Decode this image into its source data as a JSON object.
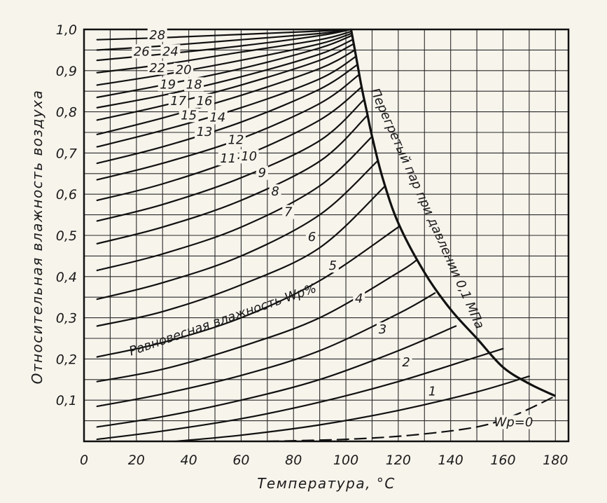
{
  "chart_data": {
    "type": "line",
    "xlabel": "Температура, °С",
    "ylabel": "Относительная влажность воздуха",
    "xlim": [
      0,
      185
    ],
    "ylim": [
      0,
      1.0
    ],
    "x_ticks": [
      "0",
      "20",
      "40",
      "60",
      "80",
      "100",
      "120",
      "140",
      "160",
      "180"
    ],
    "y_ticks": [
      "0,1",
      "0,2",
      "0,3",
      "0,4",
      "0,5",
      "0,6",
      "0,7",
      "0,8",
      "0,9",
      "1,0"
    ],
    "grid": true,
    "region_labels": {
      "center": "Равновесная влажность Wp%",
      "boundary": "Перегретый пар при давлении 0,1 МПа"
    },
    "boundary_curve": {
      "x": [
        102,
        104,
        106,
        108,
        110,
        114,
        120,
        130,
        140,
        150,
        160,
        170,
        180
      ],
      "y": [
        1.0,
        0.93,
        0.86,
        0.8,
        0.74,
        0.64,
        0.53,
        0.41,
        0.32,
        0.25,
        0.18,
        0.14,
        0.11
      ]
    },
    "series": [
      {
        "name": "0",
        "x": [
          70,
          100,
          125,
          150,
          165,
          180
        ],
        "y": [
          0.0,
          0.005,
          0.015,
          0.035,
          0.065,
          0.11
        ]
      },
      {
        "name": "1",
        "x": [
          35,
          60,
          90,
          120,
          150,
          170
        ],
        "y": [
          0.0,
          0.015,
          0.04,
          0.075,
          0.12,
          0.158
        ]
      },
      {
        "name": "2",
        "x": [
          5,
          30,
          60,
          90,
          120,
          150,
          160
        ],
        "y": [
          0.005,
          0.025,
          0.055,
          0.095,
          0.145,
          0.205,
          0.225
        ]
      },
      {
        "name": "3",
        "x": [
          5,
          30,
          60,
          90,
          120,
          142
        ],
        "y": [
          0.035,
          0.06,
          0.1,
          0.15,
          0.22,
          0.28
        ]
      },
      {
        "name": "4",
        "x": [
          5,
          30,
          60,
          90,
          120,
          134
        ],
        "y": [
          0.085,
          0.115,
          0.16,
          0.22,
          0.31,
          0.36
        ]
      },
      {
        "name": "5",
        "x": [
          5,
          30,
          60,
          90,
          120,
          127
        ],
        "y": [
          0.145,
          0.175,
          0.23,
          0.3,
          0.41,
          0.44
        ]
      },
      {
        "name": "6",
        "x": [
          5,
          30,
          60,
          90,
          120
        ],
        "y": [
          0.205,
          0.24,
          0.3,
          0.39,
          0.52
        ]
      },
      {
        "name": "7",
        "x": [
          5,
          30,
          60,
          90,
          115
        ],
        "y": [
          0.28,
          0.315,
          0.38,
          0.47,
          0.62
        ]
      },
      {
        "name": "8",
        "x": [
          5,
          30,
          60,
          90,
          112
        ],
        "y": [
          0.345,
          0.385,
          0.45,
          0.55,
          0.68
        ]
      },
      {
        "name": "9",
        "x": [
          5,
          30,
          60,
          90,
          110
        ],
        "y": [
          0.415,
          0.455,
          0.52,
          0.62,
          0.74
        ]
      },
      {
        "name": "10",
        "x": [
          5,
          30,
          60,
          90,
          108
        ],
        "y": [
          0.48,
          0.52,
          0.585,
          0.68,
          0.79
        ]
      },
      {
        "name": "11",
        "x": [
          5,
          30,
          60,
          90,
          107
        ],
        "y": [
          0.535,
          0.575,
          0.64,
          0.73,
          0.83
        ]
      },
      {
        "name": "12",
        "x": [
          5,
          30,
          60,
          90,
          106
        ],
        "y": [
          0.585,
          0.625,
          0.69,
          0.78,
          0.86
        ]
      },
      {
        "name": "13",
        "x": [
          5,
          30,
          60,
          90,
          105
        ],
        "y": [
          0.635,
          0.675,
          0.735,
          0.82,
          0.89
        ]
      },
      {
        "name": "14",
        "x": [
          5,
          30,
          60,
          90,
          104.5
        ],
        "y": [
          0.675,
          0.715,
          0.775,
          0.855,
          0.915
        ]
      },
      {
        "name": "15",
        "x": [
          5,
          30,
          60,
          90,
          104
        ],
        "y": [
          0.715,
          0.755,
          0.81,
          0.88,
          0.935
        ]
      },
      {
        "name": "16",
        "x": [
          5,
          30,
          60,
          90,
          103.5
        ],
        "y": [
          0.745,
          0.785,
          0.84,
          0.905,
          0.95
        ]
      },
      {
        "name": "17",
        "x": [
          5,
          30,
          60,
          90,
          103
        ],
        "y": [
          0.78,
          0.815,
          0.865,
          0.925,
          0.965
        ]
      },
      {
        "name": "18",
        "x": [
          5,
          30,
          60,
          90,
          102.5
        ],
        "y": [
          0.81,
          0.84,
          0.885,
          0.94,
          0.975
        ]
      },
      {
        "name": "19",
        "x": [
          5,
          30,
          60,
          90,
          102.2
        ],
        "y": [
          0.835,
          0.865,
          0.905,
          0.955,
          0.985
        ]
      },
      {
        "name": "20",
        "x": [
          5,
          30,
          60,
          90,
          102
        ],
        "y": [
          0.865,
          0.89,
          0.925,
          0.965,
          0.99
        ]
      },
      {
        "name": "22",
        "x": [
          5,
          30,
          60,
          90,
          102
        ],
        "y": [
          0.895,
          0.915,
          0.945,
          0.975,
          0.995
        ]
      },
      {
        "name": "24",
        "x": [
          5,
          30,
          60,
          90,
          102
        ],
        "y": [
          0.925,
          0.94,
          0.96,
          0.985,
          1.0
        ]
      },
      {
        "name": "26",
        "x": [
          5,
          30,
          60,
          90,
          102
        ],
        "y": [
          0.95,
          0.96,
          0.975,
          0.99,
          1.0
        ]
      },
      {
        "name": "28",
        "x": [
          5,
          30,
          60,
          90,
          102
        ],
        "y": [
          0.975,
          0.98,
          0.988,
          0.996,
          1.0
        ]
      }
    ],
    "curve_labels": [
      {
        "text": "Wp=0",
        "x": 164,
        "y": 0.04
      },
      {
        "text": "1",
        "x": 133,
        "y": 0.115
      },
      {
        "text": "2",
        "x": 123,
        "y": 0.185
      },
      {
        "text": "3",
        "x": 114,
        "y": 0.265
      },
      {
        "text": "4",
        "x": 105,
        "y": 0.34
      },
      {
        "text": "5",
        "x": 95,
        "y": 0.42
      },
      {
        "text": "6",
        "x": 87,
        "y": 0.49
      },
      {
        "text": "7",
        "x": 78,
        "y": 0.55
      },
      {
        "text": "8",
        "x": 73,
        "y": 0.6
      },
      {
        "text": "9",
        "x": 68,
        "y": 0.645
      },
      {
        "text": "10",
        "x": 63,
        "y": 0.685
      },
      {
        "text": "11",
        "x": 55,
        "y": 0.68
      },
      {
        "text": "12",
        "x": 58,
        "y": 0.725
      },
      {
        "text": "13",
        "x": 46,
        "y": 0.745
      },
      {
        "text": "14",
        "x": 51,
        "y": 0.78
      },
      {
        "text": "15",
        "x": 40,
        "y": 0.785
      },
      {
        "text": "16",
        "x": 46,
        "y": 0.82
      },
      {
        "text": "17",
        "x": 36,
        "y": 0.82
      },
      {
        "text": "18",
        "x": 42,
        "y": 0.86
      },
      {
        "text": "19",
        "x": 32,
        "y": 0.86
      },
      {
        "text": "20",
        "x": 38,
        "y": 0.895
      },
      {
        "text": "22",
        "x": 28,
        "y": 0.9
      },
      {
        "text": "24",
        "x": 33,
        "y": 0.94
      },
      {
        "text": "26",
        "x": 22,
        "y": 0.94
      },
      {
        "text": "28",
        "x": 28,
        "y": 0.98
      }
    ]
  }
}
